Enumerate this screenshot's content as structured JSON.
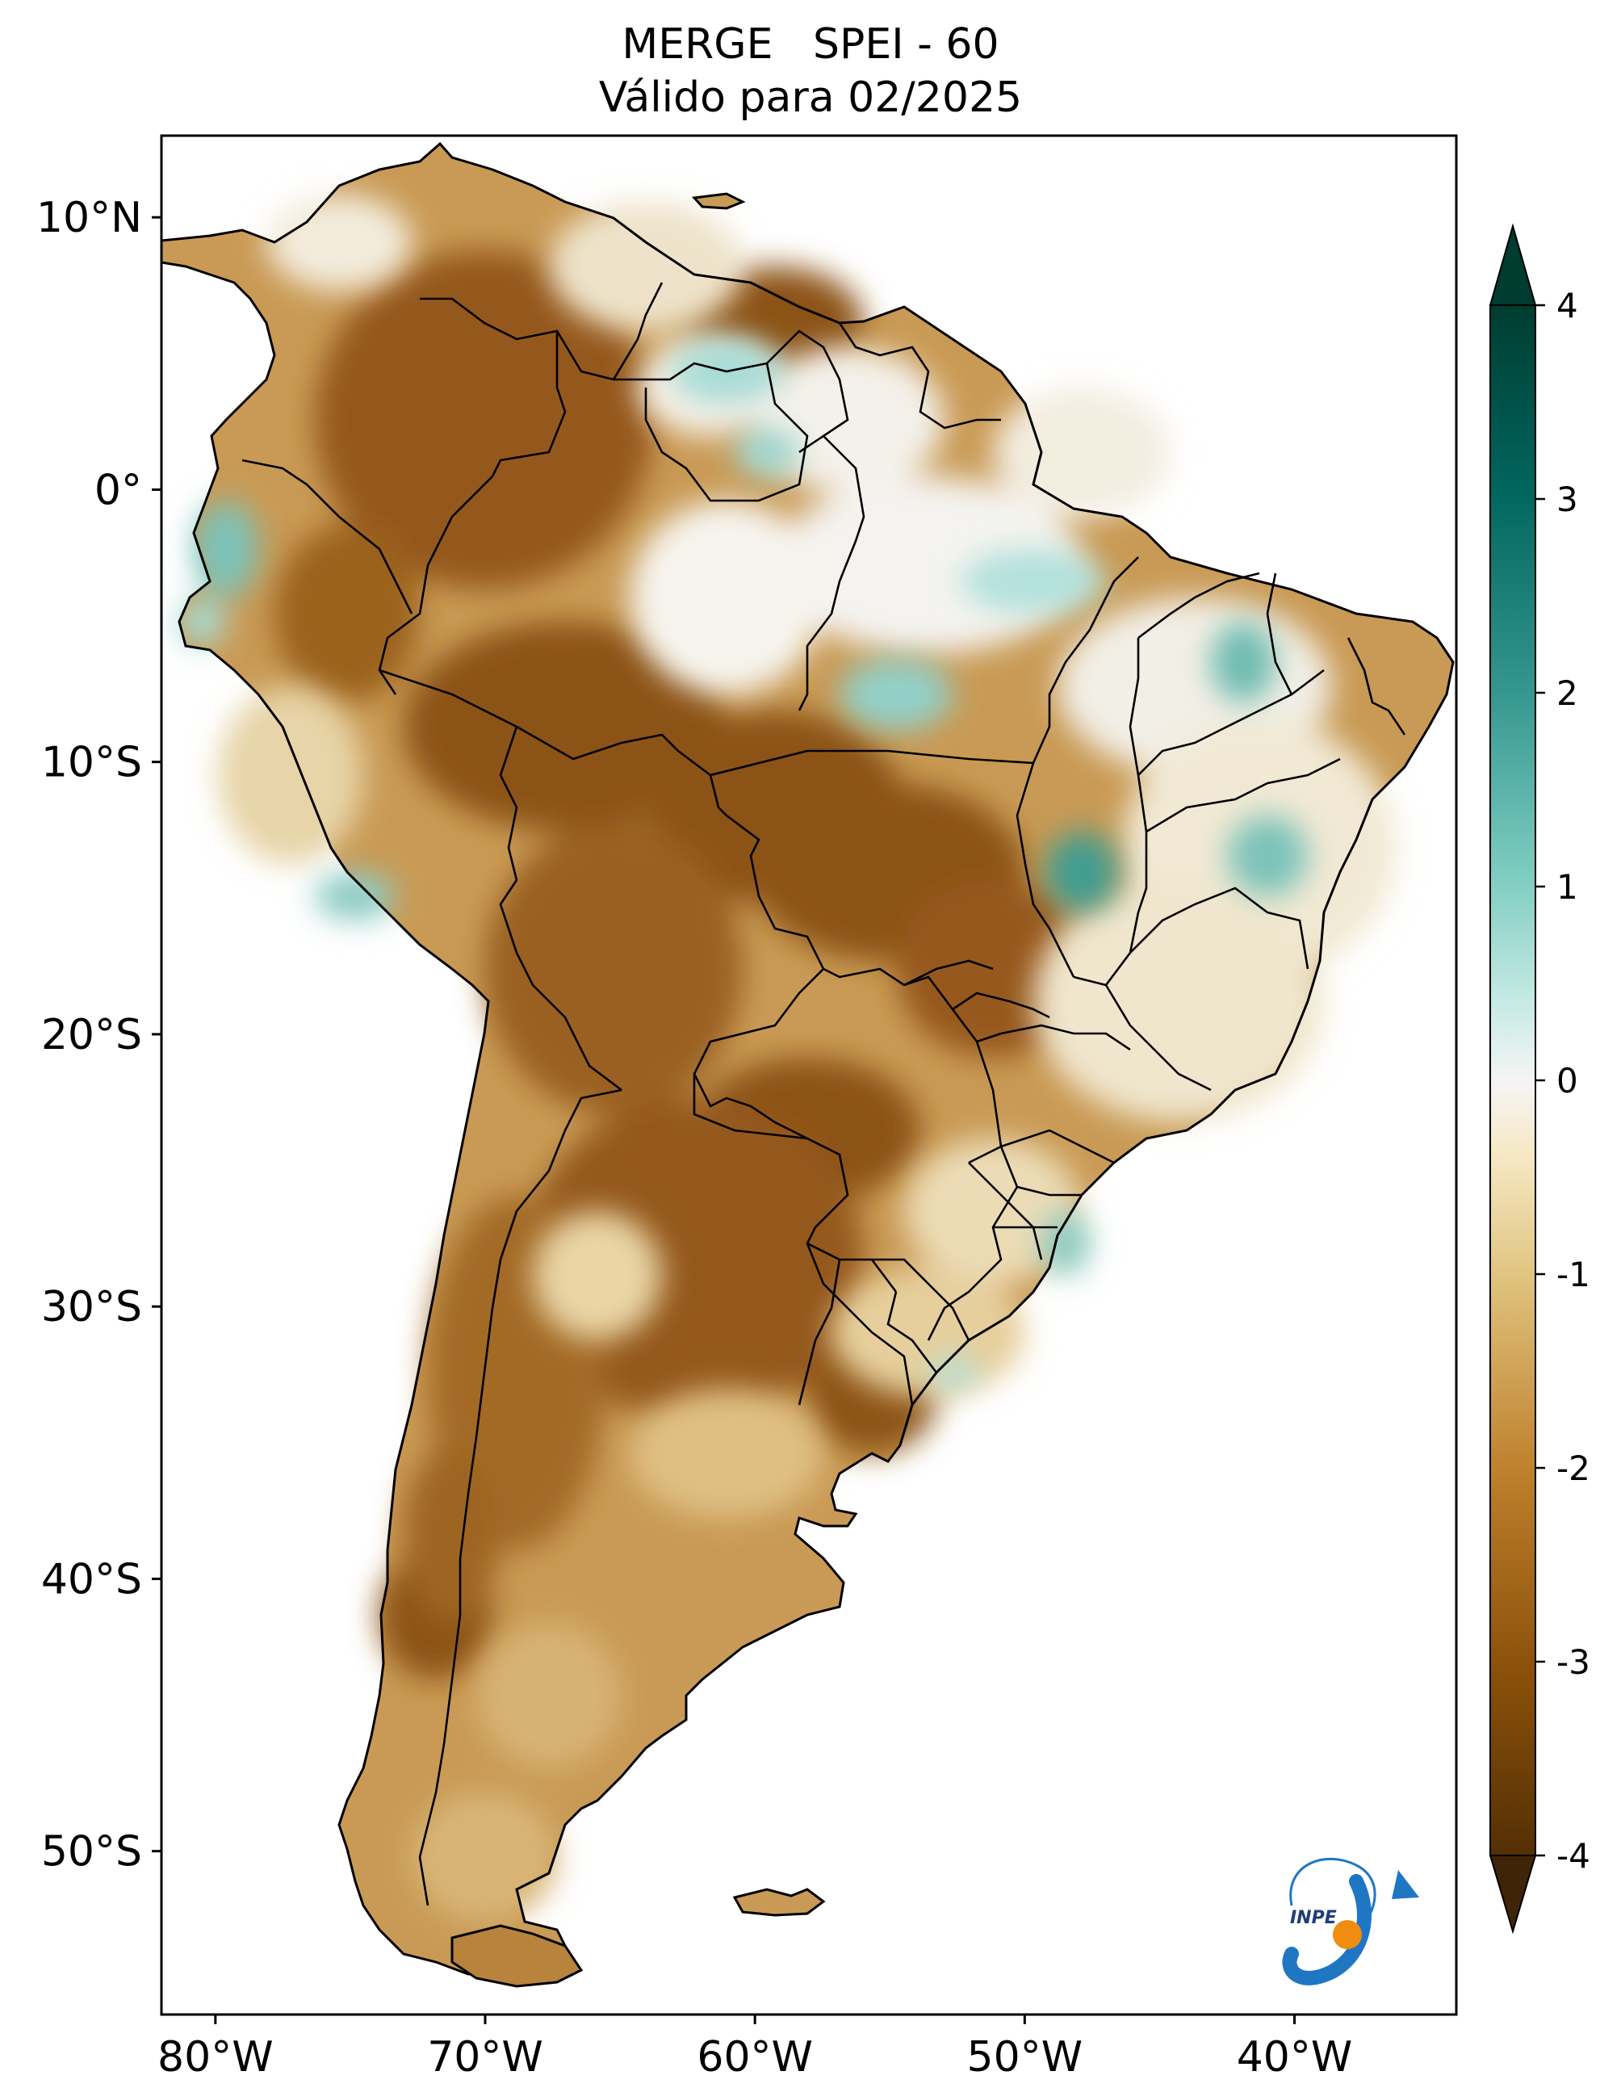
{
  "title": {
    "line1": "MERGE   SPEI - 60",
    "line2": "Válido para 02/2025"
  },
  "map": {
    "region": "South America",
    "lon_range": [
      -82,
      -34
    ],
    "lat_range": [
      -56,
      13
    ],
    "lon_ticks": [
      {
        "value": -80,
        "label": "80°W"
      },
      {
        "value": -70,
        "label": "70°W"
      },
      {
        "value": -60,
        "label": "60°W"
      },
      {
        "value": -50,
        "label": "50°W"
      },
      {
        "value": -40,
        "label": "40°W"
      }
    ],
    "lat_ticks": [
      {
        "value": 10,
        "label": "10°N"
      },
      {
        "value": 0,
        "label": "0°"
      },
      {
        "value": -10,
        "label": "10°S"
      },
      {
        "value": -20,
        "label": "20°S"
      },
      {
        "value": -30,
        "label": "30°S"
      },
      {
        "value": -40,
        "label": "40°S"
      },
      {
        "value": -50,
        "label": "50°S"
      }
    ]
  },
  "colorbar": {
    "min": -4,
    "max": 4,
    "extend": "both",
    "ticks": [
      {
        "value": 4,
        "label": "4"
      },
      {
        "value": 3,
        "label": "3"
      },
      {
        "value": 2,
        "label": "2"
      },
      {
        "value": 1,
        "label": "1"
      },
      {
        "value": 0,
        "label": "0"
      },
      {
        "value": -1,
        "label": "-1"
      },
      {
        "value": -2,
        "label": "-2"
      },
      {
        "value": -3,
        "label": "-3"
      },
      {
        "value": -4,
        "label": "-4"
      }
    ],
    "colors": {
      "low_extreme": "#3f2407",
      "dry_strong": "#8c5214",
      "dry": "#bf8a3e",
      "dry_light": "#e6cb94",
      "neutral": "#f7f4ee",
      "wet_light": "#b5e0dc",
      "wet": "#4ca89c",
      "wet_strong": "#01665e",
      "high_extreme": "#003c30"
    }
  },
  "logo": {
    "text": "INPE",
    "arrow_color": "#1f77c4",
    "dot_color": "#f08c10"
  }
}
